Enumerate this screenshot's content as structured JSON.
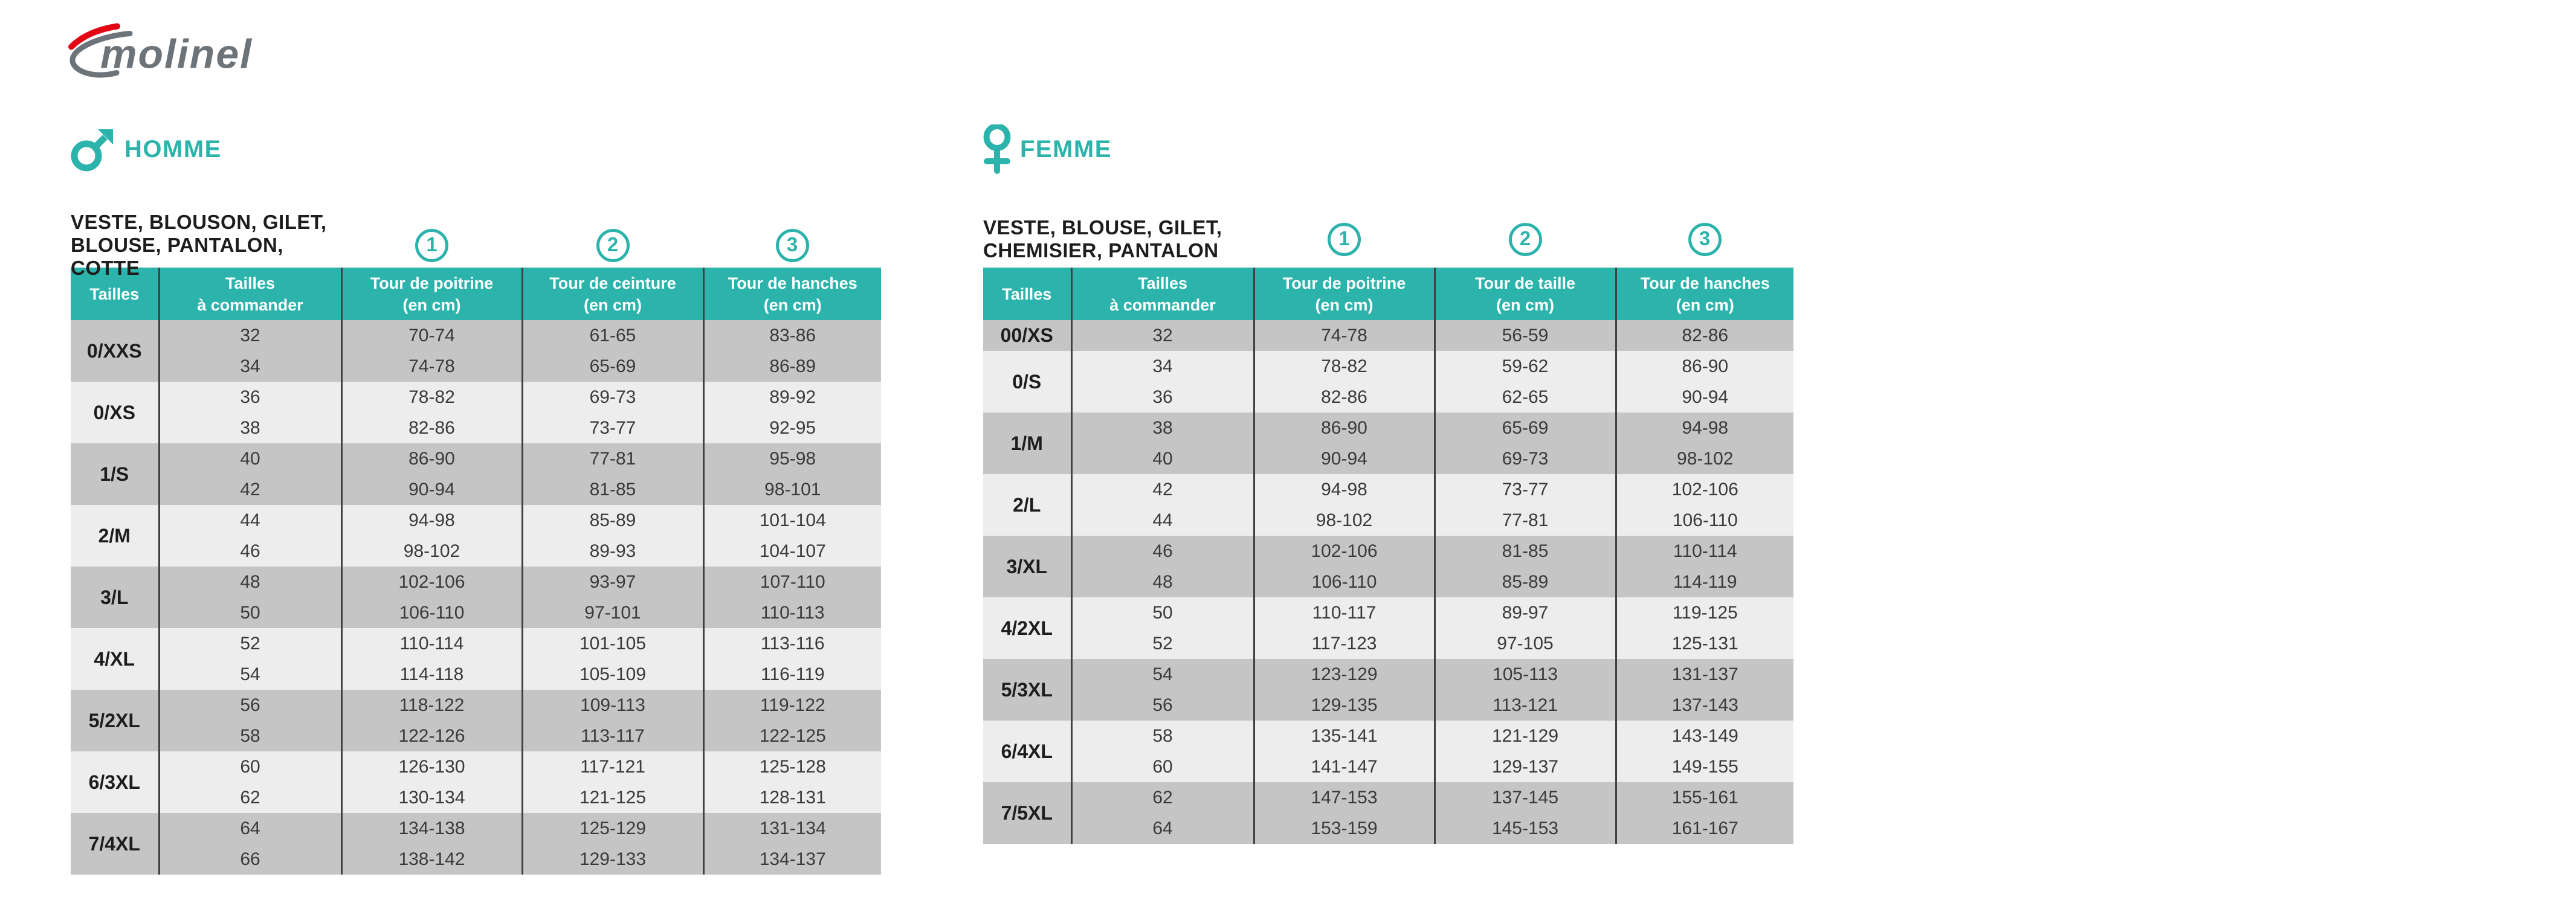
{
  "brand": {
    "logo_text": "molinel"
  },
  "colors": {
    "teal": "#2CB3AB",
    "row-dark": "#C5C5C5",
    "row-light": "#EDEDED",
    "divider": "#414141",
    "header-text": "#FFFFFF",
    "cell-text": "#3A3A3A",
    "label-text": "#1D1D1B",
    "logo-gray": "#6C7379",
    "logo-red": "#E30613"
  },
  "sections": [
    {
      "id": "homme",
      "label": "HOMME",
      "title_line1": "VESTE, BLOUSON, GILET,",
      "title_line2": "BLOUSE, PANTALON, COTTE",
      "badges": [
        "1",
        "2",
        "3"
      ],
      "columns": [
        [
          "Tailles"
        ],
        [
          "Tailles",
          "à commander"
        ],
        [
          "Tour de poitrine",
          "(en cm)"
        ],
        [
          "Tour de ceinture",
          "(en cm)"
        ],
        [
          "Tour de hanches",
          "(en cm)"
        ]
      ],
      "groups": [
        {
          "size": "0/XXS",
          "rows": [
            [
              "32",
              "70-74",
              "61-65",
              "83-86"
            ],
            [
              "34",
              "74-78",
              "65-69",
              "86-89"
            ]
          ]
        },
        {
          "size": "0/XS",
          "rows": [
            [
              "36",
              "78-82",
              "69-73",
              "89-92"
            ],
            [
              "38",
              "82-86",
              "73-77",
              "92-95"
            ]
          ]
        },
        {
          "size": "1/S",
          "rows": [
            [
              "40",
              "86-90",
              "77-81",
              "95-98"
            ],
            [
              "42",
              "90-94",
              "81-85",
              "98-101"
            ]
          ]
        },
        {
          "size": "2/M",
          "rows": [
            [
              "44",
              "94-98",
              "85-89",
              "101-104"
            ],
            [
              "46",
              "98-102",
              "89-93",
              "104-107"
            ]
          ]
        },
        {
          "size": "3/L",
          "rows": [
            [
              "48",
              "102-106",
              "93-97",
              "107-110"
            ],
            [
              "50",
              "106-110",
              "97-101",
              "110-113"
            ]
          ]
        },
        {
          "size": "4/XL",
          "rows": [
            [
              "52",
              "110-114",
              "101-105",
              "113-116"
            ],
            [
              "54",
              "114-118",
              "105-109",
              "116-119"
            ]
          ]
        },
        {
          "size": "5/2XL",
          "rows": [
            [
              "56",
              "118-122",
              "109-113",
              "119-122"
            ],
            [
              "58",
              "122-126",
              "113-117",
              "122-125"
            ]
          ]
        },
        {
          "size": "6/3XL",
          "rows": [
            [
              "60",
              "126-130",
              "117-121",
              "125-128"
            ],
            [
              "62",
              "130-134",
              "121-125",
              "128-131"
            ]
          ]
        },
        {
          "size": "7/4XL",
          "rows": [
            [
              "64",
              "134-138",
              "125-129",
              "131-134"
            ],
            [
              "66",
              "138-142",
              "129-133",
              "134-137"
            ]
          ]
        }
      ]
    },
    {
      "id": "femme",
      "label": "FEMME",
      "title_line1": "VESTE, BLOUSE, GILET,",
      "title_line2": "CHEMISIER, PANTALON",
      "badges": [
        "1",
        "2",
        "3"
      ],
      "columns": [
        [
          "Tailles"
        ],
        [
          "Tailles",
          "à commander"
        ],
        [
          "Tour de poitrine",
          "(en cm)"
        ],
        [
          "Tour de taille",
          "(en cm)"
        ],
        [
          "Tour de hanches",
          "(en cm)"
        ]
      ],
      "groups": [
        {
          "size": "00/XS",
          "rows": [
            [
              "32",
              "74-78",
              "56-59",
              "82-86"
            ]
          ]
        },
        {
          "size": "0/S",
          "rows": [
            [
              "34",
              "78-82",
              "59-62",
              "86-90"
            ],
            [
              "36",
              "82-86",
              "62-65",
              "90-94"
            ]
          ]
        },
        {
          "size": "1/M",
          "rows": [
            [
              "38",
              "86-90",
              "65-69",
              "94-98"
            ],
            [
              "40",
              "90-94",
              "69-73",
              "98-102"
            ]
          ]
        },
        {
          "size": "2/L",
          "rows": [
            [
              "42",
              "94-98",
              "73-77",
              "102-106"
            ],
            [
              "44",
              "98-102",
              "77-81",
              "106-110"
            ]
          ]
        },
        {
          "size": "3/XL",
          "rows": [
            [
              "46",
              "102-106",
              "81-85",
              "110-114"
            ],
            [
              "48",
              "106-110",
              "85-89",
              "114-119"
            ]
          ]
        },
        {
          "size": "4/2XL",
          "rows": [
            [
              "50",
              "110-117",
              "89-97",
              "119-125"
            ],
            [
              "52",
              "117-123",
              "97-105",
              "125-131"
            ]
          ]
        },
        {
          "size": "5/3XL",
          "rows": [
            [
              "54",
              "123-129",
              "105-113",
              "131-137"
            ],
            [
              "56",
              "129-135",
              "113-121",
              "137-143"
            ]
          ]
        },
        {
          "size": "6/4XL",
          "rows": [
            [
              "58",
              "135-141",
              "121-129",
              "143-149"
            ],
            [
              "60",
              "141-147",
              "129-137",
              "149-155"
            ]
          ]
        },
        {
          "size": "7/5XL",
          "rows": [
            [
              "62",
              "147-153",
              "137-145",
              "155-161"
            ],
            [
              "64",
              "153-159",
              "145-153",
              "161-167"
            ]
          ]
        }
      ]
    }
  ]
}
